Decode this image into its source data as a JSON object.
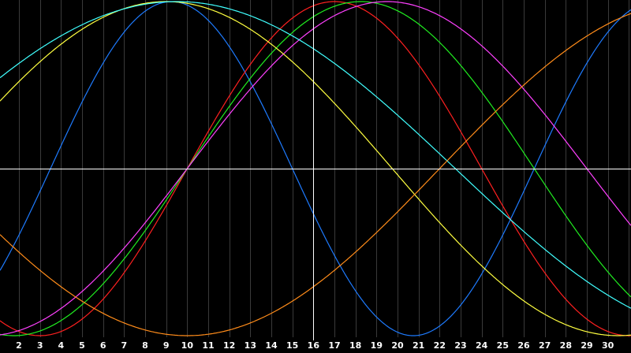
{
  "chart_data": {
    "type": "line",
    "title": "",
    "xlabel": "",
    "ylabel": "",
    "x_tick_labels": [
      "2",
      "3",
      "4",
      "5",
      "6",
      "7",
      "8",
      "9",
      "10",
      "11",
      "12",
      "13",
      "14",
      "15",
      "16",
      "17",
      "18",
      "19",
      "20",
      "21",
      "22",
      "23",
      "24",
      "25",
      "26",
      "27",
      "28",
      "29",
      "30"
    ],
    "xlim": [
      1.1,
      31.1
    ],
    "ylim": [
      -100,
      100
    ],
    "grid": true,
    "legend": "none",
    "colors": {
      "background": "#000000",
      "grid_vertical": "#3a3a3a",
      "crosshair": "#ffffff",
      "tick_text": "#ffffff"
    },
    "crosshair": {
      "x": 16,
      "y": 0
    },
    "series": [
      {
        "color": "#1e7bff",
        "period": 23,
        "peak_day": 9.25
      },
      {
        "color": "#ff2020",
        "period": 28,
        "peak_day": 17.0
      },
      {
        "color": "#20ee20",
        "period": 33,
        "peak_day": 18.25
      },
      {
        "color": "#ff40ff",
        "period": 38,
        "peak_day": 19.5
      },
      {
        "color": "#ffff40",
        "period": 43,
        "peak_day": 9.0
      },
      {
        "color": "#40ffff",
        "period": 53,
        "peak_day": 9.5
      },
      {
        "color": "#ff8c1a",
        "period": 48,
        "peak_day": 34.0
      }
    ]
  }
}
